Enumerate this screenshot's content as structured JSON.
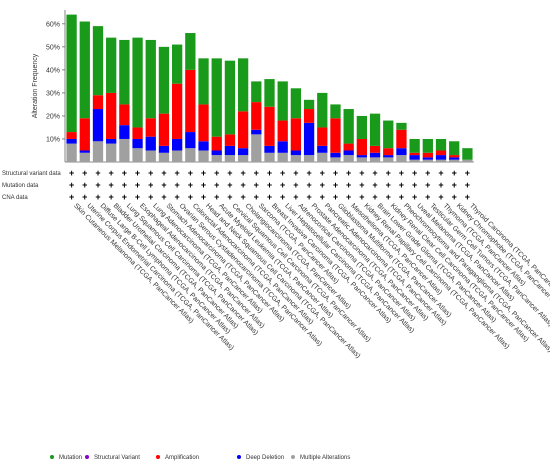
{
  "chart_data": {
    "type": "bar",
    "stacked": true,
    "ylabel": "Alteration Frequency",
    "yticks": [
      "10%",
      "20%",
      "30%",
      "40%",
      "50%",
      "60%"
    ],
    "ylim": [
      0,
      66
    ],
    "grid": false,
    "legend_position": "bottom",
    "categories": [
      "Skin Cutaneous Melanoma (TCGA, PanCancer Atlas)",
      "Uterine Corpus Endometrial Carcinoma (TCGA, PanCancer Atlas)",
      "Diffuse Large B-Cell Lymphoma (TCGA, PanCancer Atlas)",
      "Bladder Urothelial Carcinoma (TCGA, PanCancer Atlas)",
      "Lung Squamous Cell Carcinoma (TCGA, PanCancer Atlas)",
      "Esophageal Adenocarcinoma (TCGA, PanCancer Atlas)",
      "Lung Adenocarcinoma (TCGA, PanCancer Atlas)",
      "Stomach Adenocarcinoma (TCGA, PanCancer Atlas)",
      "Ovarian Serous Cystadenocarcinoma (TCGA, PanCancer Atlas)",
      "Colorectal Adenocarcinoma (TCGA, PanCancer Atlas)",
      "Head and Neck Squamous Cell Carcinoma (TCGA, PanCancer Atlas)",
      "Acute Myeloid Leukemia (TCGA, PanCancer Atlas)",
      "Cervical Squamous Cell Carcinoma (TCGA, PanCancer Atlas)",
      "Cholangiocarcinoma (TCGA, PanCancer Atlas)",
      "Sarcoma (TCGA, PanCancer Atlas)",
      "Breast Invasive Carcinoma (TCGA, PanCancer Atlas)",
      "Liver Hepatocellular Carcinoma (TCGA, PanCancer Atlas)",
      "Adrenocortical Carcinoma (TCGA, PanCancer Atlas)",
      "Prostate Adenocarcinoma (TCGA, PanCancer Atlas)",
      "Pancreatic Adenocarcinoma (TCGA, PanCancer Atlas)",
      "Glioblastoma Multiforme (TCGA, PanCancer Atlas)",
      "Mesothelioma (TCGA, PanCancer Atlas)",
      "Kidney Renal Papillary Cell Carcinoma (TCGA, PanCancer Atlas)",
      "Brain Lower Grade Glioma (TCGA, PanCancer Atlas)",
      "Kidney Renal Clear Cell Carcinoma (TCGA, PanCancer Atlas)",
      "Pheochromocytoma and Paraganglioma (TCGA, PanCancer Atlas)",
      "Uveal Melanoma (TCGA, PanCancer Atlas)",
      "Testicular Germ Cell Tumors (TCGA, PanCancer Atlas)",
      "Thymoma (TCGA, PanCancer Atlas)",
      "Kidney Chromophobe (TCGA, PanCancer Atlas)",
      "Thyroid Carcinoma (TCGA, PanCancer Atlas)"
    ],
    "series": [
      {
        "name": "Multiple Alterations",
        "color": "#a0a0a0",
        "values": [
          8,
          4,
          9,
          8,
          10,
          6,
          5,
          4,
          5,
          6,
          5,
          3,
          3,
          3,
          12,
          4,
          4,
          3,
          3,
          4,
          2,
          3,
          2,
          2,
          2,
          3,
          1,
          1,
          1,
          1,
          1
        ]
      },
      {
        "name": "Deep Deletion",
        "color": "#0000ff",
        "values": [
          2,
          1,
          14,
          2,
          6,
          4,
          6,
          3,
          5,
          7,
          4,
          2,
          4,
          3,
          2,
          3,
          5,
          2,
          14,
          3,
          2,
          2,
          1,
          2,
          1,
          3,
          2,
          1,
          2,
          1,
          0
        ]
      },
      {
        "name": "Amplification",
        "color": "#ff0000",
        "values": [
          3,
          14,
          6,
          20,
          9,
          5,
          8,
          14,
          24,
          27,
          16,
          6,
          5,
          16,
          12,
          17,
          9,
          14,
          6,
          8,
          15,
          3,
          7,
          3,
          3,
          8,
          1,
          2,
          2,
          1,
          0
        ]
      },
      {
        "name": "Structural Variant",
        "color": "#8b00c9",
        "values": [
          0,
          0,
          0,
          0,
          0,
          0,
          0,
          0,
          0,
          0,
          0,
          0,
          0,
          0,
          0,
          0,
          0,
          0,
          0,
          0,
          0,
          0,
          0,
          0,
          0,
          0,
          0,
          0,
          0,
          0,
          0
        ]
      },
      {
        "name": "Mutation",
        "color": "#1a9a1a",
        "values": [
          51,
          42,
          30,
          24,
          28,
          39,
          34,
          29,
          17,
          16,
          20,
          34,
          32,
          23,
          9,
          12,
          17,
          13,
          4,
          15,
          6,
          15,
          10,
          14,
          12,
          3,
          6,
          6,
          5,
          6,
          5
        ]
      }
    ],
    "row_labels": [
      "Structural variant data",
      "Mutation data",
      "CNA data"
    ],
    "legend": [
      {
        "label": "Mutation",
        "color": "#1a9a1a"
      },
      {
        "label": "Structural Variant",
        "color": "#8b00c9"
      },
      {
        "label": "Amplification",
        "color": "#ff0000"
      },
      {
        "label": "Deep Deletion",
        "color": "#0000ff"
      },
      {
        "label": "Multiple Alterations",
        "color": "#a0a0a0"
      }
    ]
  }
}
